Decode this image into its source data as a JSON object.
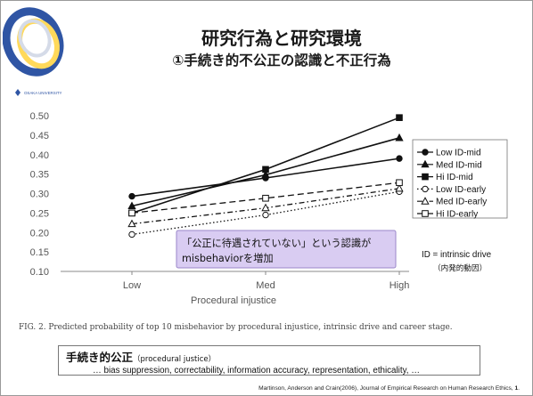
{
  "slide": {
    "title": "研究行為と研究環境",
    "subtitle": "①手続き的不公正の認識と不正行為",
    "logo_text": "OSAKA UNIVERSITY"
  },
  "chart_data": {
    "type": "line",
    "categories": [
      "Low",
      "Med",
      "High"
    ],
    "xlabel": "Procedural injustice",
    "ylabel": "",
    "ylim": [
      0.1,
      0.5
    ],
    "yticks": [
      "0.50",
      "0.45",
      "0.40",
      "0.35",
      "0.30",
      "0.25",
      "0.20",
      "0.15",
      "0.10"
    ],
    "legend_position": "right",
    "series": [
      {
        "name": "Low ID-mid",
        "values": [
          0.293,
          0.34,
          0.39
        ],
        "marker": "filled-circle",
        "dash": "solid"
      },
      {
        "name": "Med ID-mid",
        "values": [
          0.268,
          0.348,
          0.443
        ],
        "marker": "filled-triangle",
        "dash": "solid"
      },
      {
        "name": "Hi ID-mid",
        "values": [
          0.25,
          0.362,
          0.495
        ],
        "marker": "filled-square",
        "dash": "solid"
      },
      {
        "name": "Low ID-early",
        "values": [
          0.195,
          0.245,
          0.305
        ],
        "marker": "open-circle",
        "dash": "dotted"
      },
      {
        "name": "Med ID-early",
        "values": [
          0.222,
          0.263,
          0.313
        ],
        "marker": "open-triangle",
        "dash": "dashdot"
      },
      {
        "name": "Hi ID-early",
        "values": [
          0.25,
          0.288,
          0.328
        ],
        "marker": "open-square",
        "dash": "dashed"
      }
    ],
    "annotation": {
      "line1": "「公正に待遇されていない」という認識が",
      "line2": "misbehaviorを増加"
    },
    "id_note": {
      "line1": "ID = intrinsic drive",
      "line2": "（内発的動因）"
    }
  },
  "caption": "FIG. 2.  Predicted probability of top 10 misbehavior by procedural injustice, intrinsic drive and career stage.",
  "definition": {
    "term": "手続き的公正",
    "term_en": "（procedural justice）",
    "items": "… bias suppression, correctability, information accuracy, representation, ethicality, …"
  },
  "reference": {
    "text": "Martinson, Anderson and Crain(2006), Journal of Empirical Research on Human Research Ethics, ",
    "volume": "1",
    "end": "."
  },
  "colors": {
    "line": "#111111",
    "annotation_fill": "#d9ccf2",
    "annotation_border": "#9a86c9",
    "logo_blue": "#2f55a4",
    "logo_yellow": "#ffd95a"
  }
}
